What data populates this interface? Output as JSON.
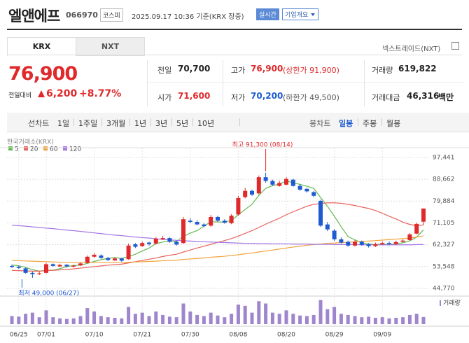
{
  "header": {
    "name": "엘앤에프",
    "code": "066970",
    "market": "코스피",
    "timestamp": "2025.09.17 10:36 기준(KRX 장중)",
    "realtime": "실시간",
    "company_info": "기업개요"
  },
  "tabs": {
    "items": [
      "KRX",
      "NXT"
    ],
    "nxt_link": "넥스트레이드(NXT)"
  },
  "quote": {
    "price": "76,900",
    "change_label": "전일대비",
    "change": "6,200",
    "change_pct": "+8.77%",
    "stats": [
      {
        "label": "전일",
        "value": "70,700"
      },
      {
        "label": "고가",
        "value": "76,900",
        "note": "(상한가 91,900)"
      },
      {
        "label": "거래량",
        "value": "619,822"
      },
      {
        "label": "시가",
        "value": "71,600"
      },
      {
        "label": "저가",
        "value": "70,200",
        "note": "(하한가 49,500)"
      },
      {
        "label": "거래대금",
        "value": "46,316",
        "unit": "백만"
      }
    ]
  },
  "toolbar": {
    "line_chart": "선차트",
    "periods": [
      "1일",
      "1주일",
      "3개월",
      "1년",
      "3년",
      "5년",
      "10년"
    ],
    "candle_chart": "봉차트",
    "candle_periods": [
      "일봉",
      "주봉",
      "월봉"
    ]
  },
  "chart_data": {
    "type": "candlestick",
    "title": "한국거래소(KRX)",
    "categories": [
      null,
      "06/25",
      null,
      null,
      null,
      "07/01",
      null,
      null,
      null,
      null,
      null,
      null,
      "07/10",
      null,
      null,
      null,
      null,
      null,
      null,
      "07/21",
      null,
      null,
      null,
      null,
      null,
      null,
      "07/30",
      null,
      null,
      null,
      null,
      null,
      null,
      "08/08",
      null,
      null,
      null,
      null,
      null,
      null,
      "08/20",
      null,
      null,
      null,
      null,
      null,
      null,
      "08/29",
      null,
      null,
      null,
      null,
      null,
      null,
      "09/09",
      null,
      null,
      null,
      null,
      null,
      null
    ],
    "open": [
      53800,
      53500,
      52800,
      51000,
      50500,
      51000,
      54500,
      53600,
      54300,
      53500,
      54000,
      55000,
      57500,
      58000,
      57000,
      56000,
      56800,
      56500,
      62500,
      61800,
      63200,
      62800,
      64500,
      65000,
      63500,
      63000,
      72000,
      71500,
      70500,
      70000,
      73500,
      72000,
      71000,
      74500,
      81500,
      84000,
      83000,
      89500,
      88000,
      86000,
      86500,
      88500,
      86000,
      84800,
      83500,
      80000,
      70500,
      68000,
      64500,
      63500,
      62000,
      63500,
      62500,
      61800,
      62500,
      63000,
      62600,
      63500,
      64200,
      66800,
      71600
    ],
    "high": [
      54300,
      53900,
      53100,
      51500,
      51600,
      55000,
      54800,
      54700,
      54500,
      54300,
      55200,
      58000,
      58900,
      58500,
      57400,
      57300,
      57000,
      62800,
      63000,
      63600,
      63500,
      65400,
      65800,
      65300,
      64000,
      73500,
      73000,
      72200,
      71000,
      74300,
      74000,
      72600,
      74600,
      82000,
      85200,
      84500,
      90200,
      91300,
      88500,
      88000,
      89500,
      88900,
      86800,
      85300,
      84000,
      80500,
      71500,
      68600,
      65300,
      64000,
      64200,
      64000,
      63000,
      63200,
      63600,
      63700,
      64000,
      64500,
      67000,
      71200,
      76900
    ],
    "low": [
      53000,
      52600,
      50700,
      49000,
      50100,
      50800,
      53500,
      53300,
      53200,
      53200,
      53800,
      54800,
      57100,
      56700,
      55800,
      55800,
      55500,
      56300,
      61000,
      61500,
      62000,
      62500,
      64200,
      63100,
      62000,
      62700,
      71000,
      70200,
      69300,
      69600,
      71600,
      70800,
      70600,
      74000,
      81000,
      82000,
      82600,
      87300,
      86000,
      85700,
      86200,
      85700,
      84000,
      83300,
      81500,
      69500,
      67800,
      63900,
      62800,
      61500,
      61600,
      61900,
      61200,
      61400,
      62200,
      62100,
      62300,
      63300,
      64000,
      66500,
      70200
    ],
    "close": [
      53400,
      53000,
      51000,
      50500,
      50800,
      54500,
      53800,
      54200,
      53600,
      53900,
      54800,
      57500,
      58300,
      57000,
      56200,
      56800,
      55900,
      62000,
      61500,
      63000,
      62600,
      64800,
      65000,
      63500,
      62400,
      72600,
      71500,
      70500,
      69800,
      73500,
      72000,
      71200,
      74000,
      81100,
      84000,
      82500,
      89500,
      88000,
      86500,
      87200,
      88800,
      86000,
      84500,
      83800,
      82000,
      70000,
      68500,
      64500,
      63200,
      62000,
      63500,
      62300,
      61800,
      62500,
      63000,
      62600,
      63400,
      64000,
      66500,
      70700,
      76900
    ],
    "up_color": "#e0292b",
    "down_color": "#1e5bd2",
    "series": [
      {
        "name": "5",
        "color": "#63b94f",
        "values": [
          54200,
          53900,
          53200,
          52300,
          51700,
          52000,
          52100,
          52700,
          53500,
          54000,
          54100,
          54800,
          55600,
          56300,
          56800,
          57200,
          56800,
          57600,
          58500,
          59800,
          61000,
          62800,
          63400,
          63800,
          63700,
          65700,
          67000,
          68000,
          69800,
          71600,
          71500,
          71400,
          72100,
          74400,
          76500,
          78600,
          82200,
          85000,
          86100,
          86700,
          88000,
          87300,
          86600,
          85900,
          85000,
          81300,
          77800,
          73800,
          69600,
          65600,
          64300,
          63100,
          62600,
          62400,
          62600,
          62400,
          62700,
          63100,
          63900,
          65400,
          68300
        ]
      },
      {
        "name": "20",
        "color": "#e8625c",
        "values": [
          52000,
          51900,
          51800,
          51700,
          51700,
          51900,
          52000,
          52200,
          52400,
          52600,
          52900,
          53200,
          53500,
          53800,
          54100,
          54300,
          54500,
          55000,
          55500,
          56000,
          56500,
          57000,
          57600,
          58100,
          58500,
          59400,
          60200,
          61000,
          61700,
          62500,
          63300,
          64000,
          64800,
          65800,
          66900,
          68000,
          69300,
          70600,
          71800,
          73000,
          74400,
          75600,
          76700,
          77800,
          78600,
          78900,
          79200,
          79200,
          79000,
          78600,
          78100,
          77500,
          76900,
          76100,
          75000,
          73800,
          72700,
          71400,
          70500,
          70000,
          70300
        ]
      },
      {
        "name": "60",
        "color": "#f2a23c",
        "values": [
          56000,
          55900,
          55800,
          55700,
          55600,
          55500,
          55400,
          55300,
          55300,
          55200,
          55200,
          55200,
          55200,
          55200,
          55200,
          55200,
          55200,
          55300,
          55400,
          55500,
          55600,
          55700,
          55900,
          56000,
          56100,
          56400,
          56600,
          56800,
          57000,
          57300,
          57500,
          57700,
          58000,
          58300,
          58700,
          59000,
          59400,
          59800,
          60200,
          60600,
          61000,
          61400,
          61700,
          62100,
          62400,
          62600,
          62900,
          63000,
          63200,
          63300,
          63500,
          63700,
          63800,
          64000,
          64200,
          64400,
          64600,
          64800,
          65000,
          65400,
          65900
        ]
      },
      {
        "name": "120",
        "color": "#a374e3",
        "values": [
          70200,
          70000,
          69800,
          69500,
          69300,
          69000,
          68800,
          68500,
          68200,
          68000,
          67700,
          67400,
          67100,
          66800,
          66500,
          66200,
          66000,
          65700,
          65400,
          65200,
          65000,
          64700,
          64500,
          64300,
          64100,
          63900,
          63800,
          63600,
          63500,
          63400,
          63300,
          63200,
          63100,
          63000,
          62900,
          62900,
          62800,
          62800,
          62700,
          62700,
          62700,
          62600,
          62600,
          62600,
          62500,
          62500,
          62500,
          62400,
          62400,
          62400,
          62400,
          62300,
          62300,
          62300,
          62300,
          62300,
          62300,
          62300,
          62300,
          62400,
          62400
        ]
      }
    ],
    "volume": [
      700000,
      650000,
      900000,
      1000000,
      600000,
      1200000,
      600000,
      500000,
      450000,
      500000,
      700000,
      1400000,
      1100000,
      700000,
      600000,
      550000,
      500000,
      1500000,
      900000,
      1000000,
      700000,
      1100000,
      800000,
      650000,
      600000,
      1800000,
      1100000,
      800000,
      700000,
      1000000,
      750000,
      600000,
      900000,
      1700000,
      1600000,
      1000000,
      2000000,
      1800000,
      1000000,
      900000,
      1200000,
      900000,
      750000,
      700000,
      800000,
      2100000,
      1300000,
      1500000,
      900000,
      800000,
      700000,
      600000,
      650000,
      550000,
      600000,
      500000,
      550000,
      600000,
      800000,
      900000,
      619822
    ],
    "volume_label": "거래량",
    "volume_color": "#9f86cc",
    "volume_ylim": [
      0,
      2200000
    ],
    "ylim": [
      42500,
      100250
    ],
    "yticks": [
      {
        "value": 97441,
        "label": "97,441"
      },
      {
        "value": 88662,
        "label": "88,662"
      },
      {
        "value": 79884,
        "label": "79,884"
      },
      {
        "value": 71105,
        "label": "71,105"
      },
      {
        "value": 62327,
        "label": "62,327"
      },
      {
        "value": 53548,
        "label": "53,548"
      },
      {
        "value": 44770,
        "label": "44,770"
      }
    ],
    "grid": true,
    "annotations": [
      {
        "text": "최고 91,300 (08/14)",
        "index": 37,
        "color": "#e0292b",
        "at": "high"
      },
      {
        "text": "최저 49,000 (06/27)",
        "index": 3,
        "color": "#1e5bd2",
        "at": "low"
      }
    ]
  }
}
